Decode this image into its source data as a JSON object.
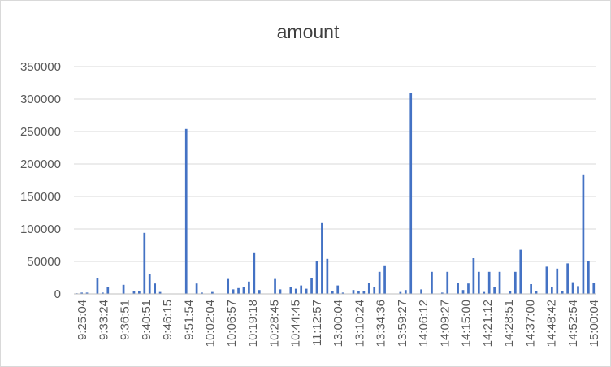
{
  "chart_data": {
    "type": "bar",
    "title": "amount",
    "xlabel": "",
    "ylabel": "",
    "ylim": [
      0,
      350000
    ],
    "yticks": [
      0,
      50000,
      100000,
      150000,
      200000,
      250000,
      300000,
      350000
    ],
    "ytick_labels": [
      "0",
      "50000",
      "100000",
      "150000",
      "200000",
      "250000",
      "300000",
      "350000"
    ],
    "grid": true,
    "legend": "none",
    "bar_color": "#4472c4",
    "xtick_labels": [
      "9:25:04",
      "9:33:24",
      "9:36:51",
      "9:40:51",
      "9:46:15",
      "9:51:54",
      "10:02:04",
      "10:06:57",
      "10:19:18",
      "10:28:45",
      "10:44:45",
      "11:12:57",
      "13:00:04",
      "13:10:24",
      "13:34:36",
      "13:59:27",
      "14:06:12",
      "14:09:27",
      "14:15:00",
      "14:21:12",
      "14:28:51",
      "14:37:00",
      "14:48:42",
      "14:52:54",
      "15:00:04"
    ],
    "values": [
      1000,
      2000,
      2000,
      0,
      24000,
      2000,
      10000,
      0,
      0,
      14000,
      0,
      5000,
      4000,
      94000,
      30000,
      16000,
      3000,
      0,
      0,
      0,
      0,
      254000,
      0,
      16000,
      2000,
      0,
      3000,
      0,
      0,
      23000,
      7000,
      9000,
      11000,
      19000,
      64000,
      6000,
      0,
      0,
      23000,
      7000,
      0,
      10000,
      8000,
      13000,
      8000,
      25000,
      50000,
      109000,
      54000,
      4000,
      13000,
      2000,
      0,
      6000,
      5000,
      4000,
      17000,
      10000,
      34000,
      44000,
      0,
      0,
      3000,
      6000,
      309000,
      0,
      7000,
      0,
      34000,
      0,
      2000,
      34000,
      0,
      17000,
      6000,
      16000,
      55000,
      34000,
      3000,
      34000,
      10000,
      34000,
      0,
      4000,
      34000,
      68000,
      0,
      15000,
      4000,
      0,
      42000,
      10000,
      39000,
      4000,
      47000,
      18000,
      12000,
      184000,
      51000,
      17000
    ]
  }
}
